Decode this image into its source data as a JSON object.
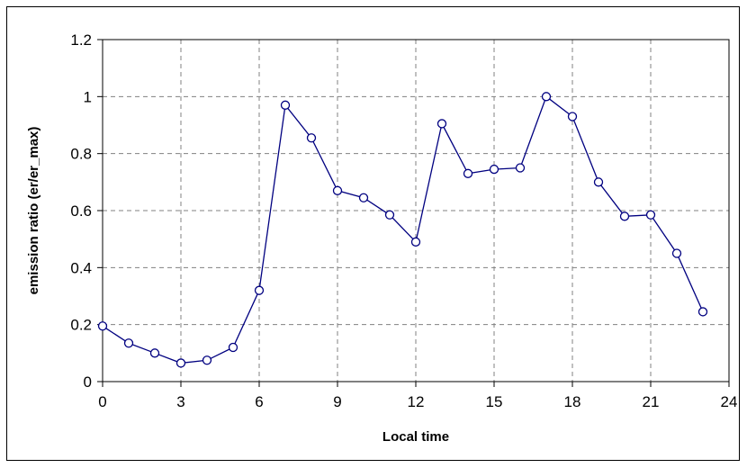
{
  "chart_data": {
    "type": "line",
    "title": "",
    "xlabel": "Local time",
    "ylabel": "emission ratio (er/er_max)",
    "xlim": [
      0,
      24
    ],
    "ylim": [
      0,
      1.2
    ],
    "x_ticks": [
      "0",
      "3",
      "6",
      "9",
      "12",
      "15",
      "18",
      "21",
      "24"
    ],
    "y_ticks": [
      "0",
      "0.2",
      "0.4",
      "0.6",
      "0.8",
      "1",
      "1.2"
    ],
    "grid": true,
    "legend": "none",
    "series": [
      {
        "color": "#000080",
        "marker": "open-circle",
        "x": [
          0,
          1,
          2,
          3,
          4,
          5,
          6,
          7,
          8,
          9,
          10,
          11,
          12,
          13,
          14,
          15,
          16,
          17,
          18,
          19,
          20,
          21,
          22,
          23
        ],
        "y": [
          0.195,
          0.135,
          0.1,
          0.065,
          0.075,
          0.12,
          0.32,
          0.97,
          0.855,
          0.67,
          0.645,
          0.585,
          0.49,
          0.905,
          0.73,
          0.745,
          0.75,
          1.0,
          0.93,
          0.7,
          0.58,
          0.585,
          0.45,
          0.245
        ]
      }
    ]
  }
}
